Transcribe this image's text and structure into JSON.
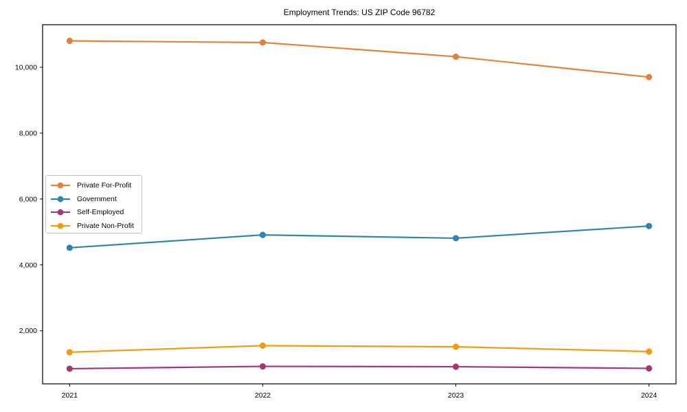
{
  "title": "Employment Trends: US ZIP Code 96782",
  "chart_data": {
    "type": "line",
    "title": "Employment Trends: US ZIP Code 96782",
    "xlabel": "",
    "ylabel": "",
    "categories": [
      2021,
      2022,
      2023,
      2024
    ],
    "xtick_labels": [
      "2021",
      "2022",
      "2023",
      "2024"
    ],
    "yticks": [
      2000,
      4000,
      6000,
      8000,
      10000
    ],
    "ytick_labels": [
      "2,000",
      "4,000",
      "6,000",
      "8,000",
      "10,000"
    ],
    "xlim": [
      2020.86,
      2024.14
    ],
    "ylim": [
      390,
      11290
    ],
    "grid": false,
    "legend_position": "center-left",
    "marker": "circle",
    "series": [
      {
        "name": "Private For-Profit",
        "color": "#e2823f",
        "values": [
          10800,
          10750,
          10320,
          9700
        ]
      },
      {
        "name": "Government",
        "color": "#2e86a8",
        "values": [
          4520,
          4910,
          4810,
          5180
        ]
      },
      {
        "name": "Self-Employed",
        "color": "#a23874",
        "values": [
          850,
          920,
          910,
          860
        ]
      },
      {
        "name": "Private Non-Profit",
        "color": "#f09c13",
        "values": [
          1350,
          1550,
          1515,
          1370
        ]
      }
    ],
    "axis_color": "#000000",
    "text_color": "#000000"
  }
}
